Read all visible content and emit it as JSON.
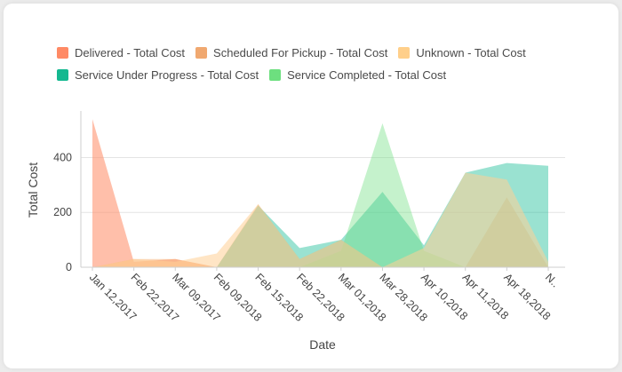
{
  "chart_data": {
    "type": "area",
    "xlabel": "Date",
    "ylabel": "Total Cost",
    "ylim": [
      0,
      570
    ],
    "yticks": [
      0,
      200,
      400
    ],
    "grid": true,
    "legend_position": "top-left",
    "categories": [
      "Jan 12,2017",
      "Feb 22,2017",
      "Mar 09,2017",
      "Feb 09,2018",
      "Feb 15,2018",
      "Feb 22,2018",
      "Mar 01,2018",
      "Mar 28,2018",
      "Apr 10,2018",
      "Apr 11,2018",
      "Apr 18,2018",
      "N.."
    ],
    "series": [
      {
        "name": "Delivered - Total Cost",
        "color": "#ff8a65",
        "opacity": 0.55,
        "values": [
          540,
          20,
          30,
          0,
          0,
          0,
          0,
          0,
          0,
          0,
          0,
          0
        ]
      },
      {
        "name": "Scheduled For Pickup - Total Cost",
        "color": "#f4a96b",
        "opacity": 0.45,
        "values": [
          0,
          30,
          30,
          0,
          230,
          30,
          100,
          0,
          0,
          0,
          255,
          0
        ]
      },
      {
        "name": "Service Under Progress - Total Cost",
        "color": "#1fbf9a",
        "opacity": 0.45,
        "values": [
          0,
          0,
          0,
          0,
          225,
          70,
          100,
          275,
          80,
          345,
          380,
          370
        ]
      },
      {
        "name": "Service Completed - Total Cost",
        "color": "#6ddf7f",
        "opacity": 0.4,
        "values": [
          0,
          0,
          0,
          0,
          0,
          0,
          60,
          525,
          60,
          0,
          0,
          0
        ]
      },
      {
        "name": "Unknown - Total Cost",
        "color": "#ffcf96",
        "opacity": 0.55,
        "values": [
          0,
          30,
          20,
          50,
          230,
          30,
          100,
          0,
          70,
          345,
          320,
          20
        ]
      }
    ]
  },
  "legend": {
    "rows": [
      [
        {
          "label": "Delivered - Total Cost",
          "color": "#ff8a65"
        },
        {
          "label": "Scheduled For Pickup - Total Cost",
          "color": "#f0a870"
        },
        {
          "label": "Unknown - Total Cost",
          "color": "#ffcf8a"
        }
      ],
      [
        {
          "label": "Service Under Progress - Total Cost",
          "color": "#14b890"
        },
        {
          "label": "Service Completed - Total Cost",
          "color": "#6ddf7f"
        }
      ]
    ]
  }
}
